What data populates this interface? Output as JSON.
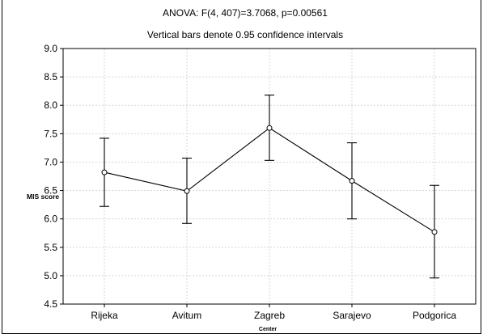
{
  "chart_data": {
    "type": "line",
    "title": "ANOVA: F(4, 407)=3.7068, p=0.00561",
    "subtitle": "Vertical bars denote 0.95 confidence intervals",
    "xlabel": "Center",
    "ylabel": "MIS score",
    "categories": [
      "Rijeka",
      "Avitum",
      "Zagreb",
      "Sarajevo",
      "Podgorica"
    ],
    "values": [
      6.82,
      6.49,
      7.6,
      6.67,
      5.77
    ],
    "ci_lower": [
      6.22,
      5.92,
      7.03,
      6.0,
      4.96
    ],
    "ci_upper": [
      7.42,
      7.07,
      8.18,
      7.34,
      6.59
    ],
    "ylim": [
      4.5,
      9.0
    ],
    "yticks": [
      4.5,
      5.0,
      5.5,
      6.0,
      6.5,
      7.0,
      7.5,
      8.0,
      8.5,
      9.0
    ],
    "ytick_labels": [
      "4.5",
      "5.0",
      "5.5",
      "6.0",
      "6.5",
      "7.0",
      "7.5",
      "8.0",
      "8.5",
      "9.0"
    ],
    "grid": true,
    "marker": "open-circle",
    "line_color": "#000000"
  }
}
